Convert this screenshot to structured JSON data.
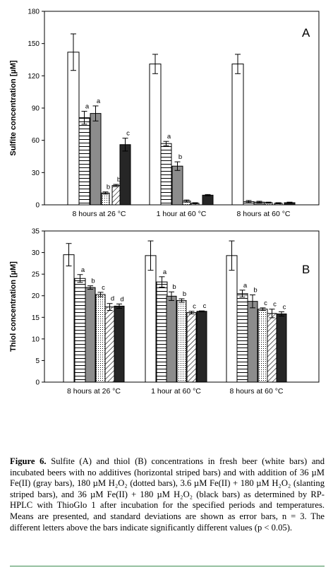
{
  "chart_data": [
    {
      "type": "bar",
      "panel_label": "A",
      "ylabel": "Sulfite concentration [µM]",
      "ylim": [
        0,
        180
      ],
      "yticks": [
        0,
        30,
        60,
        90,
        120,
        150,
        180
      ],
      "categories": [
        "8 hours at 26 °C",
        "1 hour at 60 °C",
        "8 hours at 60 °C"
      ],
      "series": [
        {
          "pattern": "white",
          "values": [
            142,
            131,
            131
          ],
          "errors": [
            17,
            9,
            9
          ],
          "letters": [
            "",
            "",
            ""
          ]
        },
        {
          "pattern": "horizontal",
          "values": [
            81,
            57,
            3
          ],
          "errors": [
            6,
            2,
            1
          ],
          "letters": [
            "a",
            "a",
            ""
          ]
        },
        {
          "pattern": "gray",
          "values": [
            85,
            36,
            2.5
          ],
          "errors": [
            7,
            4,
            0.8
          ],
          "letters": [
            "a",
            "b",
            ""
          ]
        },
        {
          "pattern": "dotted",
          "values": [
            11,
            3.5,
            2
          ],
          "errors": [
            1,
            1,
            0.5
          ],
          "letters": [
            "b",
            "",
            ""
          ]
        },
        {
          "pattern": "slanted",
          "values": [
            18,
            1.5,
            1.5
          ],
          "errors": [
            1,
            0.5,
            0.5
          ],
          "letters": [
            "b",
            "",
            ""
          ]
        },
        {
          "pattern": "black",
          "values": [
            56,
            9,
            2
          ],
          "errors": [
            6,
            0.6,
            0.5
          ],
          "letters": [
            "c",
            "",
            ""
          ]
        }
      ]
    },
    {
      "type": "bar",
      "panel_label": "B",
      "ylabel": "Thiol concentration [µM]",
      "ylim": [
        0,
        35
      ],
      "yticks": [
        0,
        5,
        10,
        15,
        20,
        25,
        30,
        35
      ],
      "categories": [
        "8 hours at 26 °C",
        "1 hour at 60 °C",
        "8 hours at 60 °C"
      ],
      "series": [
        {
          "pattern": "white",
          "values": [
            29.5,
            29.3,
            29.3
          ],
          "errors": [
            2.6,
            3.4,
            3.4
          ],
          "letters": [
            "",
            "",
            ""
          ]
        },
        {
          "pattern": "horizontal",
          "values": [
            24.0,
            23.2,
            20.5
          ],
          "errors": [
            0.9,
            1.2,
            0.8
          ],
          "letters": [
            "a",
            "a",
            "a"
          ]
        },
        {
          "pattern": "gray",
          "values": [
            21.9,
            19.9,
            18.7
          ],
          "errors": [
            0.4,
            1.0,
            1.5
          ],
          "letters": [
            "b",
            "b",
            "b"
          ]
        },
        {
          "pattern": "dotted",
          "values": [
            20.3,
            18.9,
            16.9
          ],
          "errors": [
            0.5,
            0.4,
            0.3
          ],
          "letters": [
            "c",
            "b",
            "c"
          ]
        },
        {
          "pattern": "slanted",
          "values": [
            17.4,
            16.1,
            15.9
          ],
          "errors": [
            0.8,
            0.3,
            1.0
          ],
          "letters": [
            "d",
            "c",
            "c"
          ]
        },
        {
          "pattern": "black",
          "values": [
            17.6,
            16.4,
            15.8
          ],
          "errors": [
            0.5,
            0.1,
            0.5
          ],
          "letters": [
            "d",
            "c",
            "c"
          ]
        }
      ]
    }
  ],
  "colors": {
    "white": "#ffffff",
    "gray": "#8c8c8c",
    "black": "#262626",
    "caption_rule": "#3a8a4e"
  },
  "caption": {
    "label": "Figure 6.",
    "text": "Sulfite (A) and thiol (B) concentrations in fresh beer (white bars) and incubated beers with no additives (horizontal striped bars) and with addition of 36 µM Fe(II) (gray bars), 180 µM H₂O₂ (dotted bars), 3.6 µM Fe(II) + 180 µM H₂O₂ (slanting striped bars), and 36 µM Fe(II) + 180 µM H₂O₂ (black bars) as determined by RP-HPLC with ThioGlo 1 after incubation for the specified periods and temperatures. Means are presented, and standard deviations are shown as error bars, n = 3. The different letters above the bars indicate significantly different values (p < 0.05)."
  }
}
